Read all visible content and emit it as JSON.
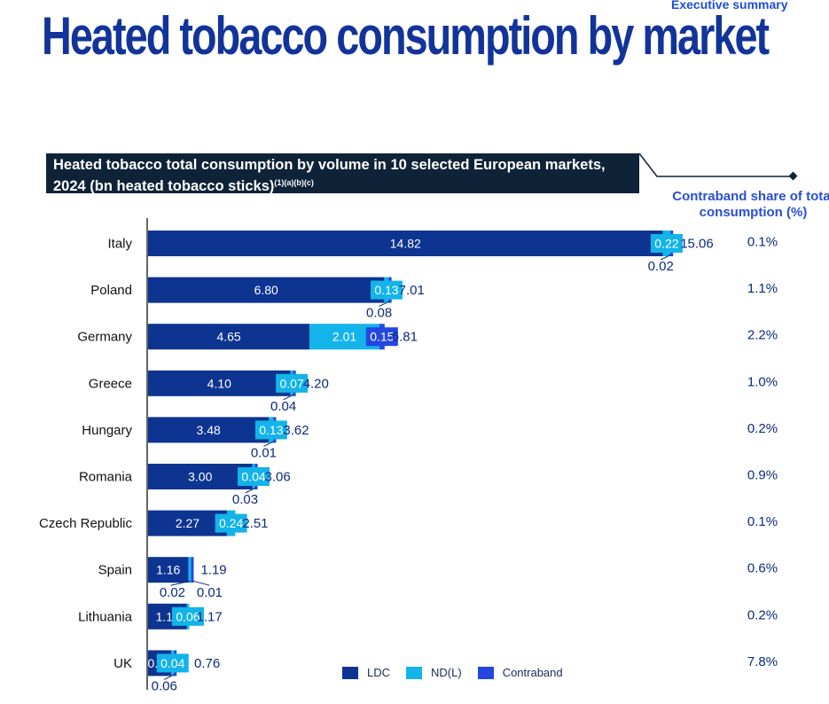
{
  "header": {
    "title": "Heated tobacco consumption by market",
    "section": "Executive summary"
  },
  "subtitle": {
    "text": "Heated tobacco total consumption by volume in 10 selected European markets, 2024 (bn heated tobacco sticks)",
    "footnote": "(1)(a)(b)(c)"
  },
  "contraband_header": "Contraband share of total consumption (%)",
  "colors": {
    "ldc": "#0c3490",
    "ndl": "#12b4ea",
    "contraband": "#2447e0",
    "text": "#0c2a80"
  },
  "legend": [
    {
      "key": "ldc",
      "label": "LDC"
    },
    {
      "key": "ndl",
      "label": "ND(L)"
    },
    {
      "key": "contraband",
      "label": "Contraband"
    }
  ],
  "chart_data": {
    "type": "bar",
    "orientation": "horizontal",
    "stacked": true,
    "title": "Heated tobacco total consumption by volume in 10 selected European markets, 2024 (bn heated tobacco sticks)",
    "categories": [
      "Italy",
      "Poland",
      "Germany",
      "Greece",
      "Hungary",
      "Romania",
      "Czech Republic",
      "Spain",
      "Lithuania",
      "UK"
    ],
    "series": [
      {
        "name": "LDC",
        "key": "ldc",
        "values": [
          14.82,
          6.8,
          4.65,
          4.1,
          3.48,
          3.0,
          2.27,
          1.16,
          1.11,
          0.67
        ]
      },
      {
        "name": "ND(L)",
        "key": "ndl",
        "values": [
          0.22,
          0.13,
          2.01,
          0.07,
          0.13,
          0.04,
          0.24,
          0.02,
          0.06,
          0.04
        ]
      },
      {
        "name": "Contraband",
        "key": "contraband",
        "values": [
          0.02,
          0.08,
          0.15,
          0.04,
          0.01,
          0.03,
          null,
          0.01,
          null,
          0.06
        ]
      }
    ],
    "totals": [
      15.06,
      7.01,
      6.81,
      4.2,
      3.62,
      3.06,
      2.51,
      1.19,
      1.17,
      0.76
    ],
    "contraband_share": [
      "0.1%",
      "1.1%",
      "2.2%",
      "1.0%",
      "0.2%",
      "0.9%",
      "0.1%",
      "0.6%",
      "0.2%",
      "7.8%"
    ],
    "xlim": [
      0,
      15.06
    ]
  }
}
